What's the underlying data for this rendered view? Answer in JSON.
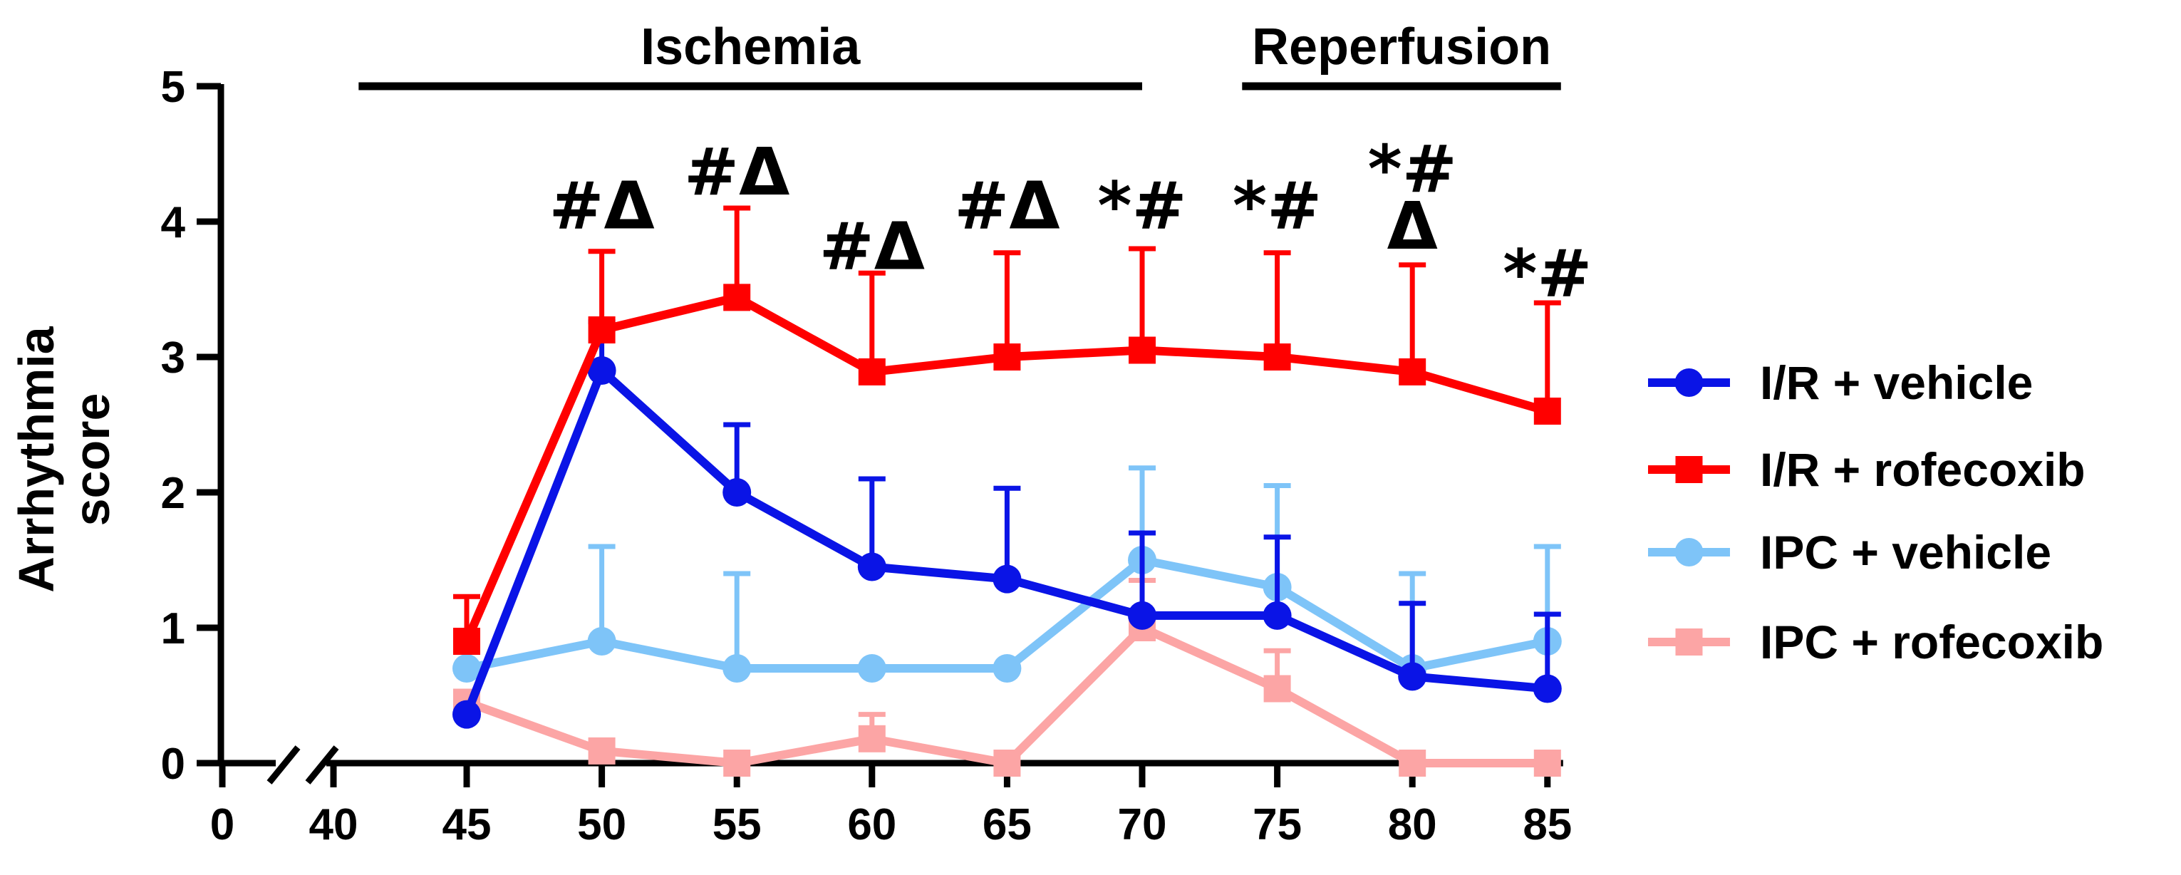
{
  "chart_data": {
    "type": "line",
    "title": "",
    "xlabel": "",
    "ylabel": "Arrhythmia score",
    "ylabel_lines": [
      "Arrhythmia",
      "score"
    ],
    "ylim": [
      0,
      5
    ],
    "yticks": [
      0,
      1,
      2,
      3,
      4,
      5
    ],
    "x_break_ticks": [
      0,
      40
    ],
    "x": [
      45,
      50,
      55,
      60,
      65,
      70,
      75,
      80,
      85
    ],
    "grid": false,
    "legend_position": "right",
    "phases": [
      {
        "label": "Ischemia",
        "start": 41,
        "end": 70
      },
      {
        "label": "Reperfusion",
        "start": 73.7,
        "end": 85.5
      }
    ],
    "series": [
      {
        "name": "IPC + rofecoxib",
        "color": "#fca5a5",
        "marker": "square",
        "values": [
          0.45,
          0.09,
          0.0,
          0.18,
          0.0,
          1.0,
          0.55,
          0.0,
          0.0
        ],
        "errors": [
          0.0,
          0.0,
          0.0,
          0.18,
          0.0,
          0.35,
          0.28,
          0.0,
          0.0
        ]
      },
      {
        "name": "IPC + vehicle",
        "color": "#7ec4f8",
        "marker": "circle",
        "values": [
          0.7,
          0.9,
          0.7,
          0.7,
          0.7,
          1.5,
          1.3,
          0.7,
          0.9
        ],
        "errors": [
          0.0,
          0.7,
          0.7,
          0.0,
          0.0,
          0.68,
          0.75,
          0.7,
          0.7
        ]
      },
      {
        "name": "I/R + vehicle",
        "color": "#0a14e6",
        "marker": "circle",
        "values": [
          0.36,
          2.9,
          2.0,
          1.45,
          1.36,
          1.09,
          1.09,
          0.64,
          0.55
        ],
        "errors": [
          0.0,
          0.36,
          0.5,
          0.65,
          0.67,
          0.61,
          0.58,
          0.54,
          0.55
        ]
      },
      {
        "name": "I/R + rofecoxib",
        "color": "#ff0000",
        "marker": "square",
        "values": [
          0.9,
          3.2,
          3.44,
          2.89,
          3.0,
          3.05,
          3.0,
          2.89,
          2.6
        ],
        "errors": [
          0.33,
          0.58,
          0.66,
          0.73,
          0.77,
          0.75,
          0.77,
          0.79,
          0.8
        ]
      }
    ],
    "legend": [
      {
        "name": "I/R + vehicle",
        "color": "#0a14e6",
        "marker": "circle"
      },
      {
        "name": "I/R + rofecoxib",
        "color": "#ff0000",
        "marker": "square"
      },
      {
        "name": "IPC + vehicle",
        "color": "#7ec4f8",
        "marker": "circle"
      },
      {
        "name": "IPC + rofecoxib",
        "color": "#fca5a5",
        "marker": "square"
      }
    ],
    "annotations": [
      {
        "x": 50,
        "lines": [
          "#Δ"
        ],
        "y": 3.95
      },
      {
        "x": 55,
        "lines": [
          "#Δ"
        ],
        "y": 4.2
      },
      {
        "x": 60,
        "lines": [
          "#Δ"
        ],
        "y": 3.65
      },
      {
        "x": 65,
        "lines": [
          "#Δ"
        ],
        "y": 3.95
      },
      {
        "x": 70,
        "lines": [
          "*#"
        ],
        "y": 3.95
      },
      {
        "x": 75,
        "lines": [
          "*#"
        ],
        "y": 3.95
      },
      {
        "x": 80,
        "lines": [
          "*#",
          "Δ"
        ],
        "y": 3.8
      },
      {
        "x": 85,
        "lines": [
          "*#"
        ],
        "y": 3.45
      }
    ]
  }
}
